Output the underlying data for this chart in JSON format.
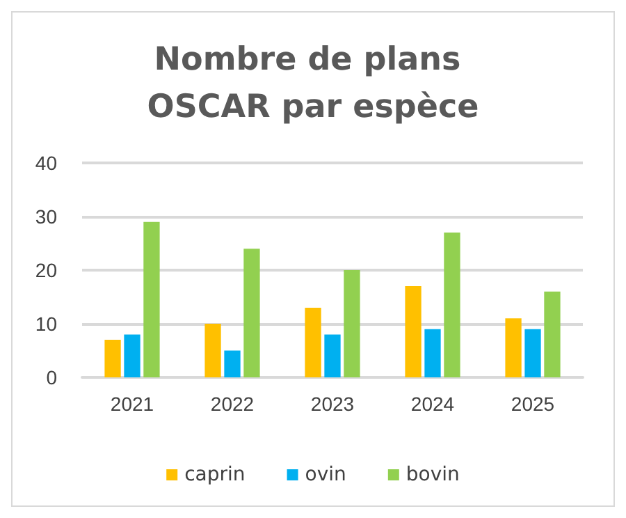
{
  "chart_data": {
    "type": "bar",
    "title": "Nombre de plans OSCAR par espèce",
    "categories": [
      "2021",
      "2022",
      "2023",
      "2024",
      "2025"
    ],
    "series": [
      {
        "name": "caprin",
        "color": "#ffc000",
        "values": [
          7,
          10,
          13,
          17,
          11
        ]
      },
      {
        "name": "ovin",
        "color": "#00b0f0",
        "values": [
          8,
          5,
          8,
          9,
          9
        ]
      },
      {
        "name": "bovin",
        "color": "#92d050",
        "values": [
          29,
          24,
          20,
          27,
          16
        ]
      }
    ],
    "ylim": [
      0,
      40
    ],
    "yticks": [
      0,
      10,
      20,
      30,
      40
    ],
    "grid": "y",
    "legend": "bottom"
  }
}
